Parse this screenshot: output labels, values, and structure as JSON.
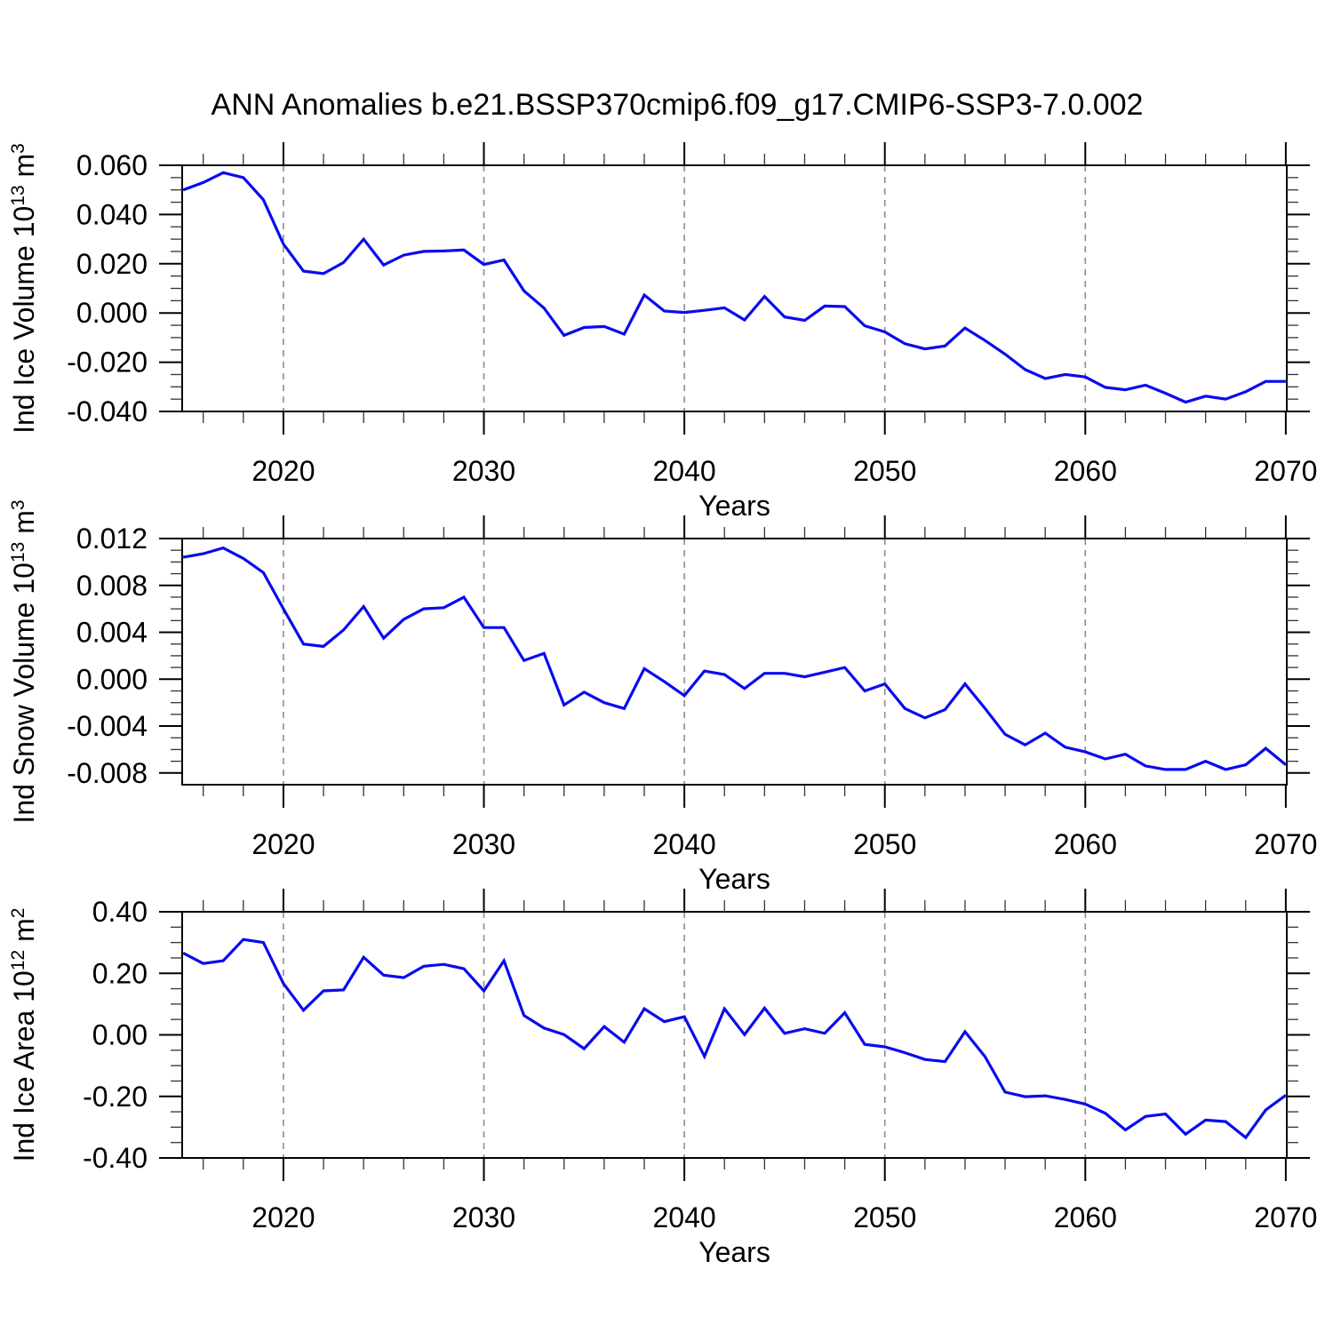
{
  "title": "ANN Anomalies b.e21.BSSP370cmip6.f09_g17.CMIP6-SSP3-7.0.002",
  "colors": {
    "line": "#0a0af0",
    "grid": "#8c8c8c",
    "frame": "#000000",
    "text": "#000000",
    "background": "#ffffff"
  },
  "chart_data": [
    {
      "type": "line",
      "name": "ind-ice-volume",
      "ylabel": "Ind Ice Volume 10^13 m^3",
      "xlabel": "Years",
      "x": [
        2015,
        2016,
        2017,
        2018,
        2019,
        2020,
        2021,
        2022,
        2023,
        2024,
        2025,
        2026,
        2027,
        2028,
        2029,
        2030,
        2031,
        2032,
        2033,
        2034,
        2035,
        2036,
        2037,
        2038,
        2039,
        2040,
        2041,
        2042,
        2043,
        2044,
        2045,
        2046,
        2047,
        2048,
        2049,
        2050,
        2051,
        2052,
        2053,
        2054,
        2055,
        2056,
        2057,
        2058,
        2059,
        2060,
        2061,
        2062,
        2063,
        2064,
        2065,
        2066,
        2067,
        2068,
        2069,
        2070
      ],
      "values": [
        0.05,
        0.053,
        0.057,
        0.055,
        0.046,
        0.028,
        0.017,
        0.016,
        0.0205,
        0.03,
        0.0195,
        0.0235,
        0.025,
        0.0252,
        0.0256,
        0.0197,
        0.0215,
        0.009,
        0.002,
        -0.0091,
        -0.0059,
        -0.0055,
        -0.0086,
        0.0073,
        0.0008,
        0.0002,
        0.0011,
        0.0021,
        -0.0028,
        0.0067,
        -0.0016,
        -0.003,
        0.0028,
        0.0026,
        -0.0052,
        -0.0077,
        -0.0125,
        -0.0146,
        -0.0134,
        -0.0061,
        -0.0112,
        -0.0167,
        -0.023,
        -0.0266,
        -0.025,
        -0.026,
        -0.0302,
        -0.0312,
        -0.0293,
        -0.0326,
        -0.0362,
        -0.0338,
        -0.035,
        -0.032,
        -0.0278,
        -0.0278
      ],
      "ylim": [
        -0.04,
        0.06
      ],
      "xlim": [
        2014.95,
        2070.05
      ],
      "ytick_labels": [
        "0.060",
        "0.040",
        "0.020",
        "0.000",
        "-0.020",
        "-0.040"
      ],
      "ytick_values": [
        0.06,
        0.04,
        0.02,
        0.0,
        -0.02,
        -0.04
      ],
      "y_minor_step": 0.005,
      "xtick_labels": [
        "2020",
        "2030",
        "2040",
        "2050",
        "2060",
        "2070"
      ],
      "xtick_values": [
        2020,
        2030,
        2040,
        2050,
        2060,
        2070
      ],
      "x_minor_step": 2,
      "gridlines_x": [
        2020,
        2030,
        2040,
        2050,
        2060
      ],
      "grid": "vertical-dashed",
      "legend": "none"
    },
    {
      "type": "line",
      "name": "ind-snow-volume",
      "ylabel": "Ind Snow Volume 10^13 m^3",
      "xlabel": "Years",
      "x": [
        2015,
        2016,
        2017,
        2018,
        2019,
        2020,
        2021,
        2022,
        2023,
        2024,
        2025,
        2026,
        2027,
        2028,
        2029,
        2030,
        2031,
        2032,
        2033,
        2034,
        2035,
        2036,
        2037,
        2038,
        2039,
        2040,
        2041,
        2042,
        2043,
        2044,
        2045,
        2046,
        2047,
        2048,
        2049,
        2050,
        2051,
        2052,
        2053,
        2054,
        2055,
        2056,
        2057,
        2058,
        2059,
        2060,
        2061,
        2062,
        2063,
        2064,
        2065,
        2066,
        2067,
        2068,
        2069,
        2070
      ],
      "values": [
        0.0104,
        0.0107,
        0.0112,
        0.0103,
        0.0091,
        0.006,
        0.003,
        0.0028,
        0.0042,
        0.0062,
        0.0035,
        0.0051,
        0.006,
        0.0061,
        0.007,
        0.0044,
        0.0044,
        0.0016,
        0.0022,
        -0.0022,
        -0.0011,
        -0.002,
        -0.0025,
        0.0009,
        -0.0002,
        -0.0014,
        0.0007,
        0.0004,
        -0.0008,
        0.0005,
        0.0005,
        0.0002,
        0.0006,
        0.001,
        -0.001,
        -0.0004,
        -0.0025,
        -0.0033,
        -0.0026,
        -0.0004,
        -0.0025,
        -0.0047,
        -0.0056,
        -0.0046,
        -0.0058,
        -0.0062,
        -0.0068,
        -0.0064,
        -0.0074,
        -0.0077,
        -0.0077,
        -0.007,
        -0.0077,
        -0.0073,
        -0.0059,
        -0.0073
      ],
      "ylim": [
        -0.009,
        0.012
      ],
      "xlim": [
        2014.95,
        2070.05
      ],
      "ytick_labels": [
        "0.012",
        "0.008",
        "0.004",
        "0.000",
        "-0.004",
        "-0.008"
      ],
      "ytick_values": [
        0.012,
        0.008,
        0.004,
        0.0,
        -0.004,
        -0.008
      ],
      "y_minor_step": 0.001,
      "xtick_labels": [
        "2020",
        "2030",
        "2040",
        "2050",
        "2060",
        "2070"
      ],
      "xtick_values": [
        2020,
        2030,
        2040,
        2050,
        2060,
        2070
      ],
      "x_minor_step": 2,
      "gridlines_x": [
        2020,
        2030,
        2040,
        2050,
        2060
      ],
      "grid": "vertical-dashed",
      "legend": "none"
    },
    {
      "type": "line",
      "name": "ind-ice-area",
      "ylabel": "Ind Ice Area 10^12 m^2",
      "xlabel": "Years",
      "x": [
        2015,
        2016,
        2017,
        2018,
        2019,
        2020,
        2021,
        2022,
        2023,
        2024,
        2025,
        2026,
        2027,
        2028,
        2029,
        2030,
        2031,
        2032,
        2033,
        2034,
        2035,
        2036,
        2037,
        2038,
        2039,
        2040,
        2041,
        2042,
        2043,
        2044,
        2045,
        2046,
        2047,
        2048,
        2049,
        2050,
        2051,
        2052,
        2053,
        2054,
        2055,
        2056,
        2057,
        2058,
        2059,
        2060,
        2061,
        2062,
        2063,
        2064,
        2065,
        2066,
        2067,
        2068,
        2069,
        2070
      ],
      "values": [
        0.266,
        0.232,
        0.241,
        0.31,
        0.3,
        0.167,
        0.08,
        0.143,
        0.146,
        0.252,
        0.194,
        0.186,
        0.223,
        0.229,
        0.215,
        0.143,
        0.241,
        0.063,
        0.022,
        0.001,
        -0.045,
        0.027,
        -0.024,
        0.085,
        0.043,
        0.059,
        -0.07,
        0.085,
        0.001,
        0.087,
        0.005,
        0.02,
        0.005,
        0.072,
        -0.031,
        -0.039,
        -0.058,
        -0.08,
        -0.087,
        0.01,
        -0.071,
        -0.186,
        -0.201,
        -0.198,
        -0.21,
        -0.225,
        -0.255,
        -0.309,
        -0.265,
        -0.257,
        -0.323,
        -0.277,
        -0.282,
        -0.334,
        -0.244,
        -0.196
      ],
      "ylim": [
        -0.4,
        0.4
      ],
      "xlim": [
        2014.95,
        2070.05
      ],
      "ytick_labels": [
        "0.40",
        "0.20",
        "0.00",
        "-0.20",
        "-0.40"
      ],
      "ytick_values": [
        0.4,
        0.2,
        0.0,
        -0.2,
        -0.4
      ],
      "y_minor_step": 0.05,
      "xtick_labels": [
        "2020",
        "2030",
        "2040",
        "2050",
        "2060",
        "2070"
      ],
      "xtick_values": [
        2020,
        2030,
        2040,
        2050,
        2060,
        2070
      ],
      "x_minor_step": 2,
      "gridlines_x": [
        2020,
        2030,
        2040,
        2050,
        2060
      ],
      "grid": "vertical-dashed",
      "legend": "none"
    }
  ]
}
